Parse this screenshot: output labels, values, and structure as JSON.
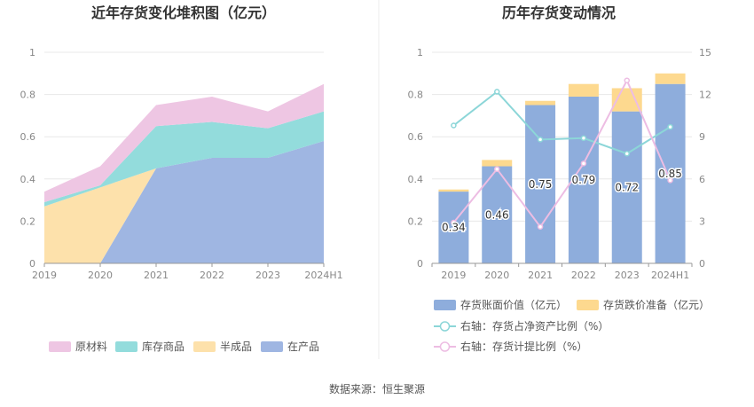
{
  "source_label": "数据来源：恒生聚源",
  "chart_data": [
    {
      "type": "area",
      "stacked": true,
      "title": "近年存货变化堆积图（亿元）",
      "categories": [
        "2019",
        "2020",
        "2021",
        "2022",
        "2023",
        "2024H1"
      ],
      "ylim": [
        0,
        1
      ],
      "yticks": [
        "0",
        "0.2",
        "0.4",
        "0.6",
        "0.8",
        "1"
      ],
      "grid": true,
      "legend_position": "bottom",
      "series": [
        {
          "name": "在产品",
          "color": "#9fb6e2",
          "values": [
            0.0,
            0.0,
            0.45,
            0.5,
            0.5,
            0.58
          ]
        },
        {
          "name": "半成品",
          "color": "#fde1ab",
          "values": [
            0.27,
            0.36,
            0.0,
            0.0,
            0.0,
            0.0
          ]
        },
        {
          "name": "库存商品",
          "color": "#93dcdc",
          "values": [
            0.02,
            0.01,
            0.2,
            0.17,
            0.14,
            0.14
          ]
        },
        {
          "name": "原材料",
          "color": "#eec6e3",
          "values": [
            0.05,
            0.09,
            0.1,
            0.12,
            0.08,
            0.13
          ]
        }
      ],
      "legend_order": [
        "原材料",
        "库存商品",
        "半成品",
        "在产品"
      ]
    },
    {
      "type": "bar",
      "stacked": true,
      "title": "历年存货变动情况",
      "categories": [
        "2019",
        "2020",
        "2021",
        "2022",
        "2023",
        "2024H1"
      ],
      "ylim": [
        0,
        1
      ],
      "yticks": [
        "0",
        "0.2",
        "0.4",
        "0.6",
        "0.8",
        "1"
      ],
      "y2lim": [
        0,
        15
      ],
      "y2ticks": [
        "0",
        "3",
        "6",
        "9",
        "12",
        "15"
      ],
      "grid": true,
      "legend_position": "bottom",
      "bar_series": [
        {
          "name": "存货账面价值（亿元）",
          "color": "#8eaddc",
          "values": [
            0.34,
            0.46,
            0.75,
            0.79,
            0.72,
            0.85
          ],
          "labels": [
            "0.34",
            "0.46",
            "0.75",
            "0.79",
            "0.72",
            "0.85"
          ]
        },
        {
          "name": "存货跌价准备（亿元）",
          "color": "#fdd98f",
          "values": [
            0.01,
            0.03,
            0.02,
            0.06,
            0.11,
            0.05
          ]
        }
      ],
      "line_series": [
        {
          "name": "右轴：存货占净资产比例（%）",
          "color": "#8cd6d8",
          "values": [
            9.8,
            12.2,
            8.8,
            8.9,
            7.8,
            9.7
          ]
        },
        {
          "name": "右轴：存货计提比例（%）",
          "color": "#edbde3",
          "values": [
            2.9,
            6.7,
            2.6,
            7.1,
            13.0,
            5.9
          ]
        }
      ]
    }
  ]
}
